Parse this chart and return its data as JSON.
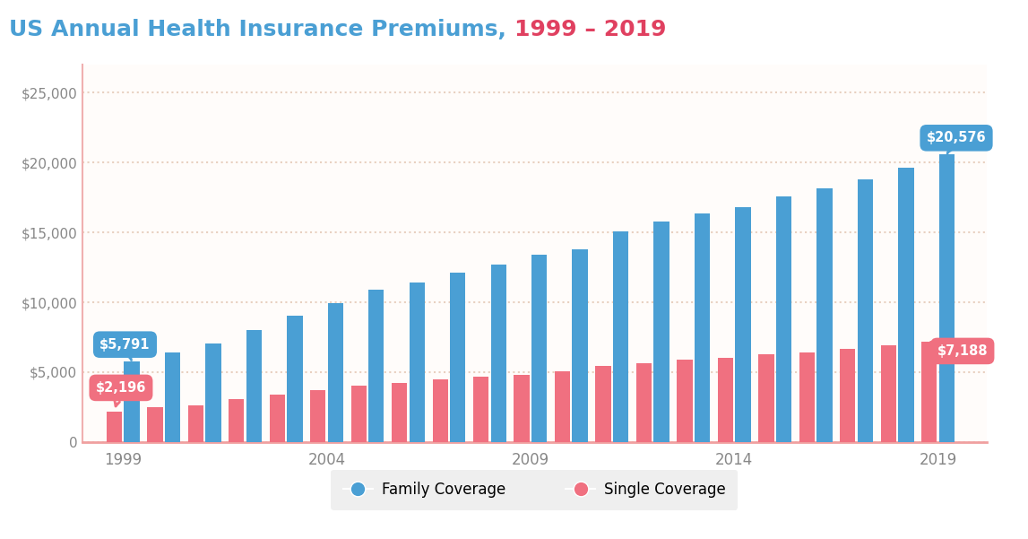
{
  "years": [
    1999,
    2000,
    2001,
    2002,
    2003,
    2004,
    2005,
    2006,
    2007,
    2008,
    2009,
    2010,
    2011,
    2012,
    2013,
    2014,
    2015,
    2016,
    2017,
    2018,
    2019
  ],
  "family": [
    5791,
    6438,
    7061,
    8003,
    9068,
    9950,
    10880,
    11381,
    12106,
    12680,
    13375,
    13770,
    15073,
    15745,
    16351,
    16834,
    17545,
    18142,
    18764,
    19616,
    20576
  ],
  "single": [
    2196,
    2471,
    2650,
    3060,
    3383,
    3695,
    4024,
    4242,
    4479,
    4704,
    4824,
    5049,
    5429,
    5615,
    5884,
    6025,
    6251,
    6435,
    6690,
    6896,
    7188
  ],
  "family_color": "#4a9fd4",
  "single_color": "#f07080",
  "title_main": "US Annual Health Insurance Premiums, ",
  "title_years": "1999 – 2019",
  "title_main_color": "#4a9fd4",
  "title_years_color": "#e04060",
  "ytick_labels": [
    "0",
    "$5,000",
    "$10,000",
    "$15,000",
    "$20,000",
    "$25,000"
  ],
  "ytick_values": [
    0,
    5000,
    10000,
    15000,
    20000,
    25000
  ],
  "ylim": [
    0,
    27000
  ],
  "xtick_labels": [
    "1999",
    "2004",
    "2009",
    "2014",
    "2019"
  ],
  "xtick_year_positions": [
    1999,
    2004,
    2009,
    2014,
    2019
  ],
  "first_family_label": "$5,791",
  "first_single_label": "$2,196",
  "last_family_label": "$20,576",
  "last_single_label": "$7,188",
  "bg_color": "#ffffff",
  "plot_bg_color": "#fffcfa",
  "grid_color": "#e8d0c0",
  "grid_linestyle": "dotted",
  "legend_bg_color": "#ebebeb",
  "family_legend": "Family Coverage",
  "single_legend": "Single Coverage",
  "spine_color": "#f0a0a0",
  "left_spine_color": "#f0b0b0"
}
